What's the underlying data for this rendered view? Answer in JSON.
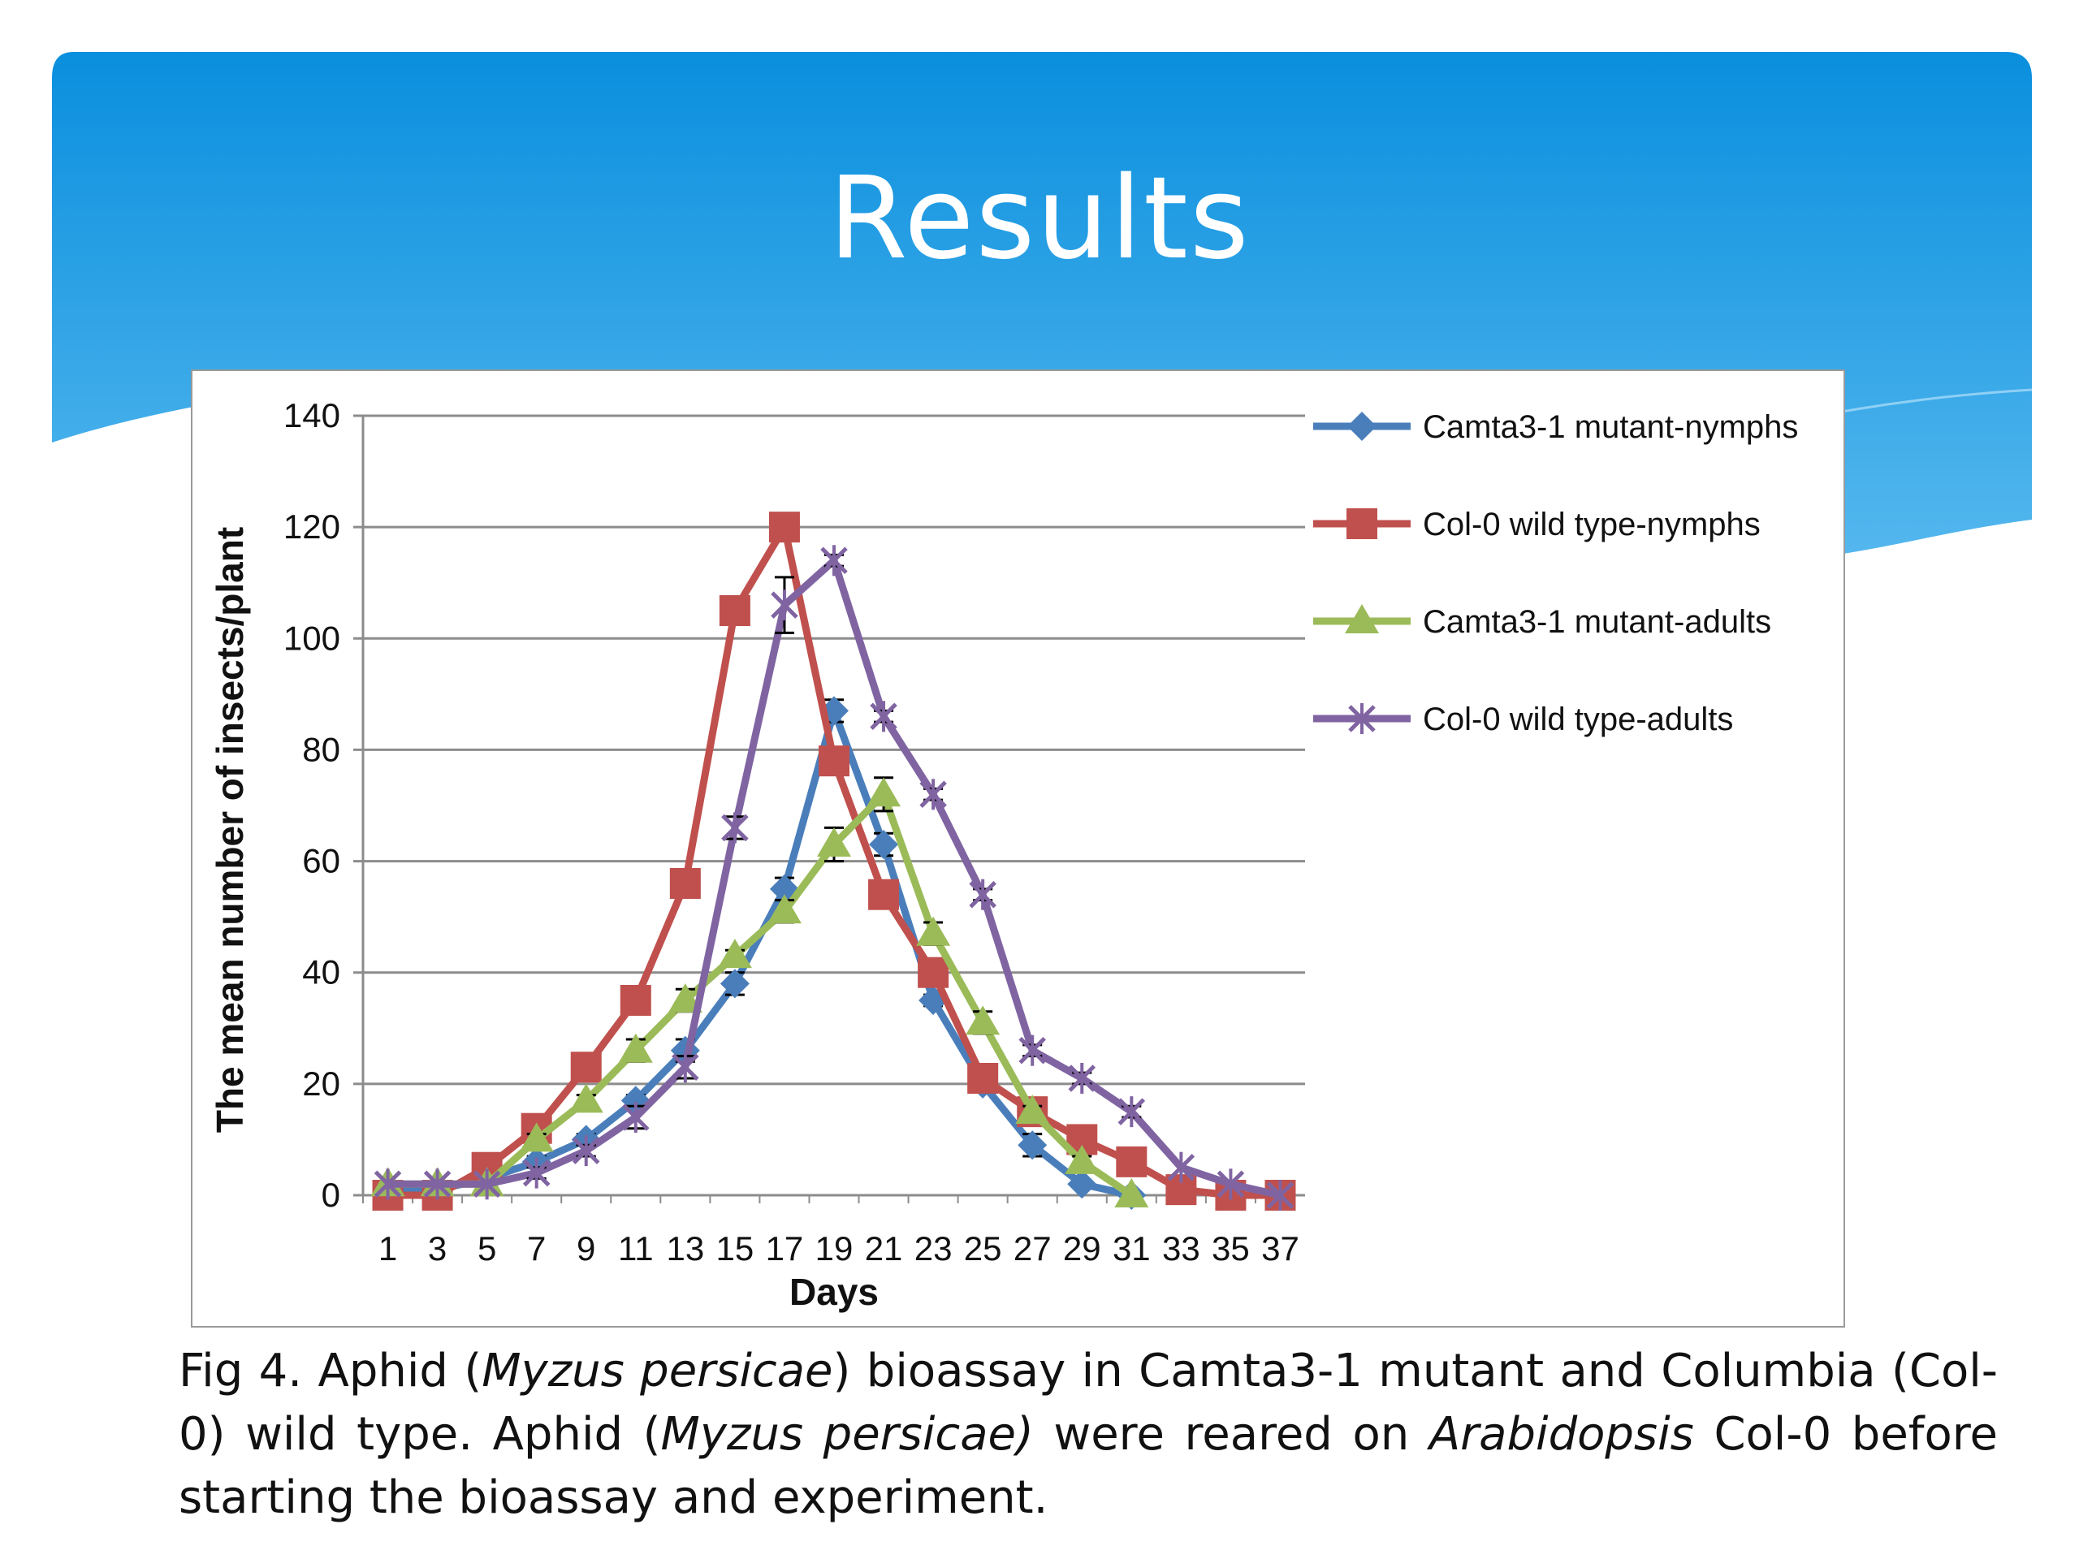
{
  "slide": {
    "title": "Results"
  },
  "caption": {
    "p1": "Fig 4. Aphid (",
    "i1": "Myzus persicae",
    "p2": ") bioassay in Camta3-1 mutant and Columbia (Col-0) wild type. Aphid (",
    "i2": "Myzus persicae)",
    "p3": " were reared on ",
    "i3": "Arabidopsis",
    "p4": " Col-0 before starting the bioassay and experiment."
  },
  "colors": {
    "banner_top": "#0a8fde",
    "banner_bottom": "#4fb4ec",
    "grid": "#8c8c8c"
  },
  "chart_data": {
    "type": "line",
    "title": "",
    "xlabel": "Days",
    "ylabel": "The mean number of insects/plant",
    "x": [
      1,
      3,
      5,
      7,
      9,
      11,
      13,
      15,
      17,
      19,
      21,
      23,
      25,
      27,
      29,
      31,
      33,
      35,
      37
    ],
    "ylim": [
      0,
      140
    ],
    "yticks": [
      0,
      20,
      40,
      60,
      80,
      100,
      120,
      140
    ],
    "grid": true,
    "legend_position": "right",
    "series": [
      {
        "name": "Camta3-1 mutant-nymphs",
        "color": "#4a7ebb",
        "marker": "diamond",
        "values": [
          1,
          1,
          3,
          6,
          10,
          17,
          26,
          38,
          55,
          87,
          63,
          35,
          20,
          9,
          2,
          0,
          null,
          null,
          null
        ],
        "errors": [
          0,
          0,
          0,
          1,
          1,
          1,
          2,
          2,
          2,
          2,
          2,
          1,
          1,
          2,
          0,
          0,
          null,
          null,
          null
        ]
      },
      {
        "name": "Col-0 wild type-nymphs",
        "color": "#c0504d",
        "marker": "square",
        "values": [
          0,
          0,
          5,
          12,
          23,
          35,
          56,
          105,
          120,
          78,
          54,
          40,
          21,
          15,
          10,
          6,
          1,
          0,
          0
        ],
        "errors": [
          0,
          0,
          0,
          1,
          1,
          1,
          1,
          1,
          0,
          1,
          1,
          1,
          1,
          1,
          1,
          1,
          0,
          0,
          0
        ]
      },
      {
        "name": "Camta3-1 mutant-adults",
        "color": "#9bbb59",
        "marker": "triangle",
        "values": [
          2,
          2,
          2,
          10,
          17,
          26,
          35,
          43,
          51,
          63,
          72,
          47,
          31,
          15,
          6,
          0,
          null,
          null,
          null
        ],
        "errors": [
          0,
          0,
          0,
          1,
          1,
          2,
          2,
          1,
          2,
          3,
          3,
          2,
          2,
          1,
          1,
          0,
          null,
          null,
          null
        ]
      },
      {
        "name": "Col-0 wild type-adults",
        "color": "#8064a2",
        "marker": "x",
        "values": [
          2,
          2,
          2,
          4,
          8,
          14,
          23,
          66,
          106,
          114,
          86,
          72,
          54,
          26,
          21,
          15,
          5,
          2,
          0
        ],
        "errors": [
          0,
          0,
          0,
          1,
          1,
          2,
          2,
          2,
          5,
          1,
          1,
          1,
          1,
          1,
          1,
          1,
          0,
          0,
          0
        ]
      }
    ]
  }
}
